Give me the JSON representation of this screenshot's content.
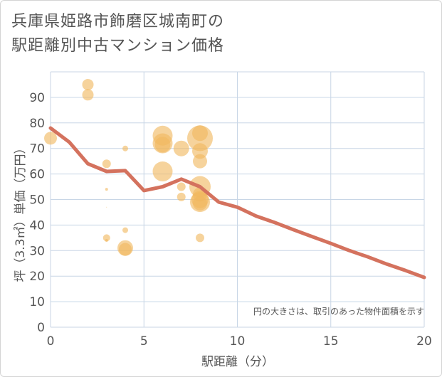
{
  "title_line1": "兵庫県姫路市飾磨区城南町の",
  "title_line2": "駅距離別中古マンション価格",
  "chart_data": {
    "type": "scatter",
    "xlabel": "駅距離（分）",
    "ylabel": "坪（3.3㎡）単価（万円）",
    "xlim": [
      0,
      20
    ],
    "ylim": [
      0,
      100
    ],
    "xticks": [
      0,
      5,
      10,
      15,
      20
    ],
    "yticks": [
      0,
      10,
      20,
      30,
      40,
      50,
      60,
      70,
      80,
      90
    ],
    "grid": true,
    "note": "円の大きさは、取引のあった物件面積を示す",
    "points": [
      {
        "x": 0,
        "y": 74,
        "size": 9
      },
      {
        "x": 2,
        "y": 95,
        "size": 8
      },
      {
        "x": 2,
        "y": 91,
        "size": 8
      },
      {
        "x": 3,
        "y": 64,
        "size": 6
      },
      {
        "x": 3,
        "y": 54,
        "size": 2
      },
      {
        "x": 3,
        "y": 47,
        "size": 0.5
      },
      {
        "x": 3,
        "y": 35,
        "size": 5
      },
      {
        "x": 3,
        "y": 34,
        "size": 2
      },
      {
        "x": 4,
        "y": 70,
        "size": 4
      },
      {
        "x": 4,
        "y": 38,
        "size": 4
      },
      {
        "x": 4,
        "y": 31,
        "size": 11
      },
      {
        "x": 4,
        "y": 30.5,
        "size": 9
      },
      {
        "x": 6,
        "y": 75,
        "size": 14
      },
      {
        "x": 6,
        "y": 72,
        "size": 14
      },
      {
        "x": 6,
        "y": 71.5,
        "size": 11
      },
      {
        "x": 6,
        "y": 61,
        "size": 14
      },
      {
        "x": 7,
        "y": 70,
        "size": 11
      },
      {
        "x": 7,
        "y": 55,
        "size": 6
      },
      {
        "x": 7,
        "y": 51,
        "size": 6
      },
      {
        "x": 8,
        "y": 74,
        "size": 18
      },
      {
        "x": 8,
        "y": 76,
        "size": 11
      },
      {
        "x": 8,
        "y": 69,
        "size": 11
      },
      {
        "x": 8,
        "y": 65,
        "size": 10
      },
      {
        "x": 8,
        "y": 55,
        "size": 15
      },
      {
        "x": 8,
        "y": 52,
        "size": 10
      },
      {
        "x": 8,
        "y": 50,
        "size": 12
      },
      {
        "x": 8,
        "y": 49,
        "size": 14
      },
      {
        "x": 8,
        "y": 48.5,
        "size": 10
      },
      {
        "x": 8,
        "y": 35,
        "size": 6
      }
    ],
    "trend": {
      "x": [
        0,
        1,
        2,
        3,
        4,
        5,
        6,
        7,
        8,
        9,
        10,
        11,
        12,
        13,
        14,
        15,
        16,
        17,
        18,
        19,
        20
      ],
      "y": [
        78,
        72.5,
        64,
        61,
        61.3,
        53.5,
        55,
        58,
        55,
        49,
        47,
        43.5,
        41,
        38.2,
        35.5,
        32.8,
        30,
        27.5,
        24.7,
        22.2,
        19.5
      ]
    },
    "colors": {
      "bubble": "#f0b860",
      "trend": "#d4725e",
      "grid": "#c8d6e6",
      "text": "#555555"
    }
  }
}
